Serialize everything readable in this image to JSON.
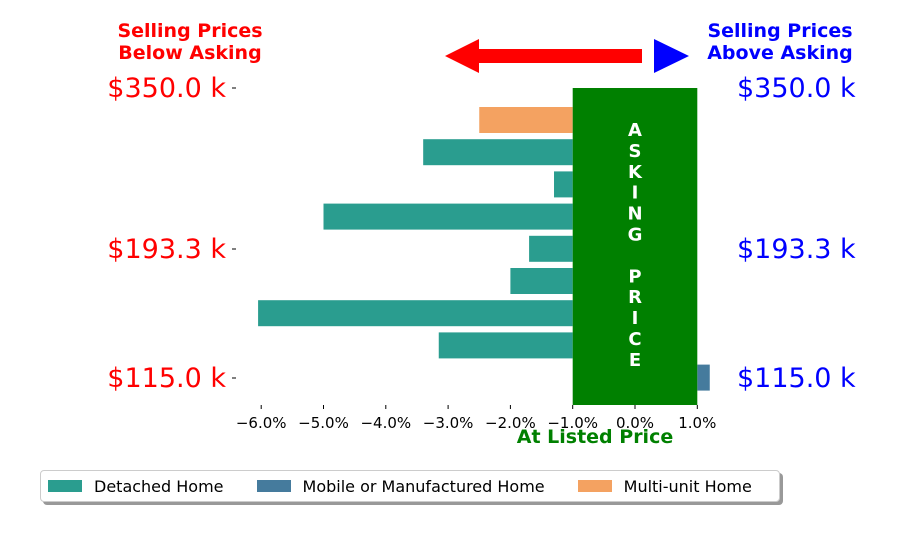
{
  "header": {
    "left": [
      "Selling Prices",
      "Below Asking"
    ],
    "right": [
      "Selling Prices",
      "Above Asking"
    ]
  },
  "price_labels": [
    "$350.0 k",
    "$193.3 k",
    "$115.0 k"
  ],
  "asking_band_label": "ASKING PRICE",
  "colors": {
    "detached": "#2a9d8f",
    "mobile": "#457b9d",
    "multi": "#f4a261",
    "asking": "#008000",
    "below": "#ff0000",
    "above": "#0000ff"
  },
  "chart_data": {
    "type": "bar",
    "orientation": "horizontal",
    "xlabel": "At Listed Price",
    "xlim": [
      -6.5,
      1.2
    ],
    "xticks": [
      "−6.0%",
      "−5.0%",
      "−4.0%",
      "−3.0%",
      "−2.0%",
      "−1.0%",
      "0.0%",
      "1.0%"
    ],
    "xtick_values": [
      -6,
      -5,
      -4,
      -3,
      -2,
      -1,
      0,
      1
    ],
    "bars": [
      {
        "series": "Multi-unit Home",
        "value": -2.5
      },
      {
        "series": "Detached Home",
        "value": -3.4
      },
      {
        "series": "Detached Home",
        "value": -1.3
      },
      {
        "series": "Detached Home",
        "value": -5.0
      },
      {
        "series": "Detached Home",
        "value": -1.7
      },
      {
        "series": "Detached Home",
        "value": -2.0
      },
      {
        "series": "Detached Home",
        "value": -6.05
      },
      {
        "series": "Detached Home",
        "value": -3.15
      },
      {
        "series": "Mobile or Manufactured Home",
        "value": 1.2
      }
    ],
    "legend": [
      {
        "name": "Detached Home",
        "color_key": "detached"
      },
      {
        "name": "Mobile or Manufactured Home",
        "color_key": "mobile"
      },
      {
        "name": "Multi-unit Home",
        "color_key": "multi"
      }
    ],
    "legend_position": "bottom"
  }
}
